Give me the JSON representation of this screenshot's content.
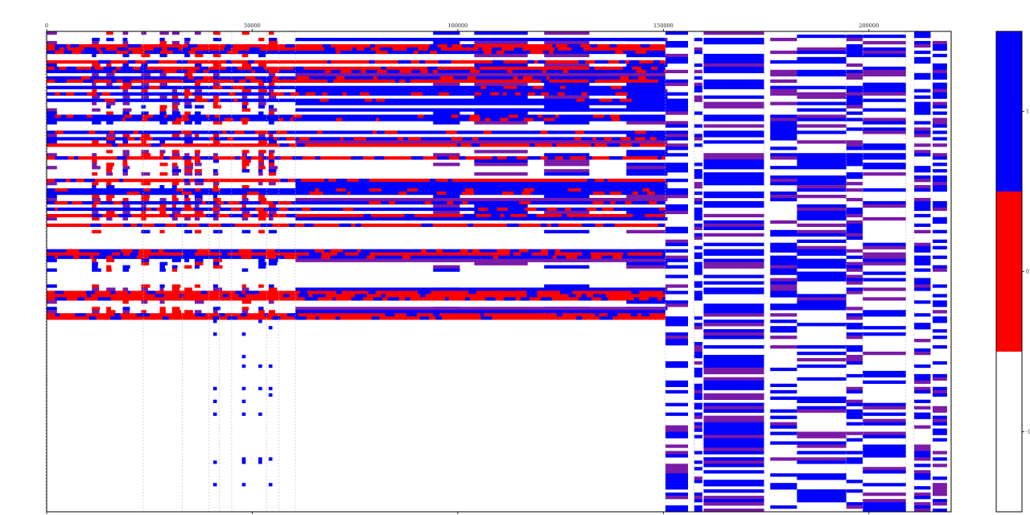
{
  "chart_data": {
    "type": "heatmap",
    "title": "",
    "xlabel": "",
    "ylabel": "",
    "xlim": [
      0,
      220000
    ],
    "x_ticks": [
      0,
      50000,
      100000,
      150000,
      200000
    ],
    "x_tick_labels": [
      "0",
      "50000",
      "100000",
      "150000",
      "200000"
    ],
    "region_boundaries": [
      23500,
      33000,
      39500,
      42000,
      45000,
      53500,
      56500,
      60500,
      150500,
      157500,
      159500,
      174500,
      194500,
      198500,
      209000,
      211000
    ],
    "region_labels": [
      "",
      "",
      "",
      "",
      "",
      "",
      "",
      "",
      "",
      "",
      "",
      "",
      "",
      "",
      "",
      ""
    ],
    "row_count": 150,
    "row_labels_printed": false,
    "colorbar": {
      "colors": [
        "#0000ff",
        "#ff0000",
        "#ffffff"
      ],
      "tick_values": [
        1,
        0,
        -1
      ],
      "tick_labels": [
        "1",
        "0",
        "-1"
      ]
    },
    "grid": false,
    "legend": "colorbar right"
  }
}
